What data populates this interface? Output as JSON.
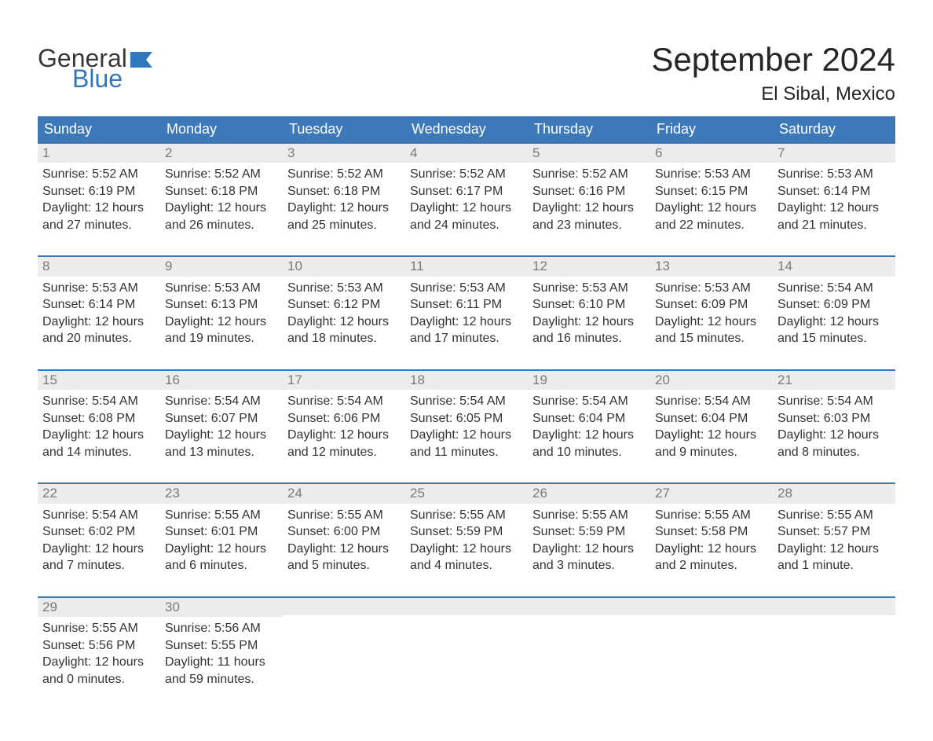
{
  "colors": {
    "header_bg": "#3d79b8",
    "header_text": "#ffffff",
    "daynum_bg": "#ececec",
    "daynum_text": "#7a7a7a",
    "row_border": "#3d79b8",
    "body_text": "#333333",
    "logo_gray": "#383838",
    "logo_blue": "#2f78bf",
    "page_bg": "#ffffff"
  },
  "typography": {
    "font_family": "Arial, Helvetica, sans-serif",
    "title_fontsize": 42,
    "location_fontsize": 24,
    "dayhead_fontsize": 18,
    "cell_fontsize": 16
  },
  "logo": {
    "line1": "General",
    "line2": "Blue"
  },
  "title": "September 2024",
  "location": "El Sibal, Mexico",
  "day_headers": [
    "Sunday",
    "Monday",
    "Tuesday",
    "Wednesday",
    "Thursday",
    "Friday",
    "Saturday"
  ],
  "weeks": [
    [
      {
        "num": "1",
        "sunrise": "Sunrise: 5:52 AM",
        "sunset": "Sunset: 6:19 PM",
        "d1": "Daylight: 12 hours",
        "d2": "and 27 minutes."
      },
      {
        "num": "2",
        "sunrise": "Sunrise: 5:52 AM",
        "sunset": "Sunset: 6:18 PM",
        "d1": "Daylight: 12 hours",
        "d2": "and 26 minutes."
      },
      {
        "num": "3",
        "sunrise": "Sunrise: 5:52 AM",
        "sunset": "Sunset: 6:18 PM",
        "d1": "Daylight: 12 hours",
        "d2": "and 25 minutes."
      },
      {
        "num": "4",
        "sunrise": "Sunrise: 5:52 AM",
        "sunset": "Sunset: 6:17 PM",
        "d1": "Daylight: 12 hours",
        "d2": "and 24 minutes."
      },
      {
        "num": "5",
        "sunrise": "Sunrise: 5:52 AM",
        "sunset": "Sunset: 6:16 PM",
        "d1": "Daylight: 12 hours",
        "d2": "and 23 minutes."
      },
      {
        "num": "6",
        "sunrise": "Sunrise: 5:53 AM",
        "sunset": "Sunset: 6:15 PM",
        "d1": "Daylight: 12 hours",
        "d2": "and 22 minutes."
      },
      {
        "num": "7",
        "sunrise": "Sunrise: 5:53 AM",
        "sunset": "Sunset: 6:14 PM",
        "d1": "Daylight: 12 hours",
        "d2": "and 21 minutes."
      }
    ],
    [
      {
        "num": "8",
        "sunrise": "Sunrise: 5:53 AM",
        "sunset": "Sunset: 6:14 PM",
        "d1": "Daylight: 12 hours",
        "d2": "and 20 minutes."
      },
      {
        "num": "9",
        "sunrise": "Sunrise: 5:53 AM",
        "sunset": "Sunset: 6:13 PM",
        "d1": "Daylight: 12 hours",
        "d2": "and 19 minutes."
      },
      {
        "num": "10",
        "sunrise": "Sunrise: 5:53 AM",
        "sunset": "Sunset: 6:12 PM",
        "d1": "Daylight: 12 hours",
        "d2": "and 18 minutes."
      },
      {
        "num": "11",
        "sunrise": "Sunrise: 5:53 AM",
        "sunset": "Sunset: 6:11 PM",
        "d1": "Daylight: 12 hours",
        "d2": "and 17 minutes."
      },
      {
        "num": "12",
        "sunrise": "Sunrise: 5:53 AM",
        "sunset": "Sunset: 6:10 PM",
        "d1": "Daylight: 12 hours",
        "d2": "and 16 minutes."
      },
      {
        "num": "13",
        "sunrise": "Sunrise: 5:53 AM",
        "sunset": "Sunset: 6:09 PM",
        "d1": "Daylight: 12 hours",
        "d2": "and 15 minutes."
      },
      {
        "num": "14",
        "sunrise": "Sunrise: 5:54 AM",
        "sunset": "Sunset: 6:09 PM",
        "d1": "Daylight: 12 hours",
        "d2": "and 15 minutes."
      }
    ],
    [
      {
        "num": "15",
        "sunrise": "Sunrise: 5:54 AM",
        "sunset": "Sunset: 6:08 PM",
        "d1": "Daylight: 12 hours",
        "d2": "and 14 minutes."
      },
      {
        "num": "16",
        "sunrise": "Sunrise: 5:54 AM",
        "sunset": "Sunset: 6:07 PM",
        "d1": "Daylight: 12 hours",
        "d2": "and 13 minutes."
      },
      {
        "num": "17",
        "sunrise": "Sunrise: 5:54 AM",
        "sunset": "Sunset: 6:06 PM",
        "d1": "Daylight: 12 hours",
        "d2": "and 12 minutes."
      },
      {
        "num": "18",
        "sunrise": "Sunrise: 5:54 AM",
        "sunset": "Sunset: 6:05 PM",
        "d1": "Daylight: 12 hours",
        "d2": "and 11 minutes."
      },
      {
        "num": "19",
        "sunrise": "Sunrise: 5:54 AM",
        "sunset": "Sunset: 6:04 PM",
        "d1": "Daylight: 12 hours",
        "d2": "and 10 minutes."
      },
      {
        "num": "20",
        "sunrise": "Sunrise: 5:54 AM",
        "sunset": "Sunset: 6:04 PM",
        "d1": "Daylight: 12 hours",
        "d2": "and 9 minutes."
      },
      {
        "num": "21",
        "sunrise": "Sunrise: 5:54 AM",
        "sunset": "Sunset: 6:03 PM",
        "d1": "Daylight: 12 hours",
        "d2": "and 8 minutes."
      }
    ],
    [
      {
        "num": "22",
        "sunrise": "Sunrise: 5:54 AM",
        "sunset": "Sunset: 6:02 PM",
        "d1": "Daylight: 12 hours",
        "d2": "and 7 minutes."
      },
      {
        "num": "23",
        "sunrise": "Sunrise: 5:55 AM",
        "sunset": "Sunset: 6:01 PM",
        "d1": "Daylight: 12 hours",
        "d2": "and 6 minutes."
      },
      {
        "num": "24",
        "sunrise": "Sunrise: 5:55 AM",
        "sunset": "Sunset: 6:00 PM",
        "d1": "Daylight: 12 hours",
        "d2": "and 5 minutes."
      },
      {
        "num": "25",
        "sunrise": "Sunrise: 5:55 AM",
        "sunset": "Sunset: 5:59 PM",
        "d1": "Daylight: 12 hours",
        "d2": "and 4 minutes."
      },
      {
        "num": "26",
        "sunrise": "Sunrise: 5:55 AM",
        "sunset": "Sunset: 5:59 PM",
        "d1": "Daylight: 12 hours",
        "d2": "and 3 minutes."
      },
      {
        "num": "27",
        "sunrise": "Sunrise: 5:55 AM",
        "sunset": "Sunset: 5:58 PM",
        "d1": "Daylight: 12 hours",
        "d2": "and 2 minutes."
      },
      {
        "num": "28",
        "sunrise": "Sunrise: 5:55 AM",
        "sunset": "Sunset: 5:57 PM",
        "d1": "Daylight: 12 hours",
        "d2": "and 1 minute."
      }
    ],
    [
      {
        "num": "29",
        "sunrise": "Sunrise: 5:55 AM",
        "sunset": "Sunset: 5:56 PM",
        "d1": "Daylight: 12 hours",
        "d2": "and 0 minutes."
      },
      {
        "num": "30",
        "sunrise": "Sunrise: 5:56 AM",
        "sunset": "Sunset: 5:55 PM",
        "d1": "Daylight: 11 hours",
        "d2": "and 59 minutes."
      },
      {
        "empty": true
      },
      {
        "empty": true
      },
      {
        "empty": true
      },
      {
        "empty": true
      },
      {
        "empty": true
      }
    ]
  ]
}
